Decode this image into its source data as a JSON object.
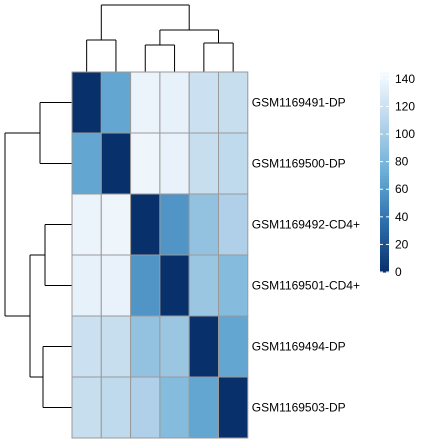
{
  "chart_data": {
    "type": "heatmap",
    "rows": [
      "GSM1169491-DP",
      "GSM1169500-DP",
      "GSM1169492-CD4+",
      "GSM1169501-CD4+",
      "GSM1169494-DP",
      "GSM1169503-DP"
    ],
    "columns": [
      "GSM1169491-DP",
      "GSM1169500-DP",
      "GSM1169492-CD4+",
      "GSM1169501-CD4+",
      "GSM1169494-DP",
      "GSM1169503-DP"
    ],
    "values": [
      [
        0,
        68,
        138,
        136,
        120,
        118
      ],
      [
        68,
        0,
        140,
        137,
        118,
        114
      ],
      [
        138,
        140,
        0,
        58,
        92,
        105
      ],
      [
        136,
        137,
        58,
        0,
        95,
        85
      ],
      [
        120,
        118,
        92,
        95,
        0,
        68
      ],
      [
        118,
        114,
        105,
        85,
        68,
        0
      ]
    ],
    "colorbar": {
      "min": 0,
      "max": 145,
      "ticks": [
        0,
        20,
        40,
        60,
        80,
        100,
        120,
        140
      ],
      "colors": [
        "#08306b",
        "#2c6fad",
        "#6aaed6",
        "#b7d4ea",
        "#f7fbff"
      ]
    },
    "row_dendrogram": "left",
    "column_dendrogram": "top",
    "title": "",
    "xlabel": "",
    "ylabel": ""
  }
}
